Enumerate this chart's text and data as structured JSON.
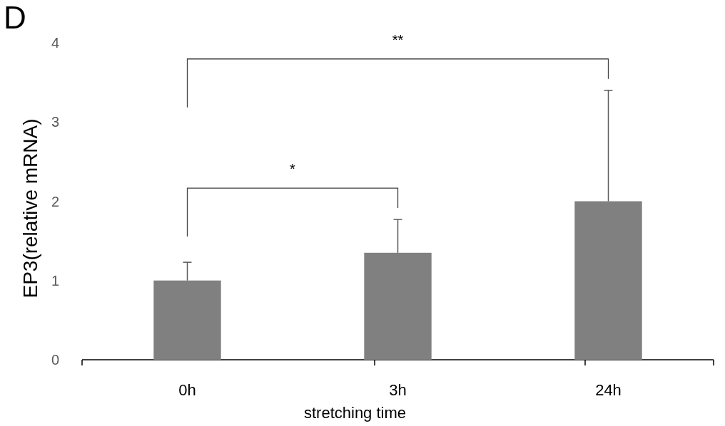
{
  "chart_data": {
    "type": "bar",
    "title": "D",
    "xlabel": "stretching time",
    "ylabel": "EP3(relative mRNA)",
    "categories": [
      "0h",
      "3h",
      "24h"
    ],
    "values": [
      1.0,
      1.35,
      2.0
    ],
    "errors": [
      [
        1.0,
        1.23
      ],
      [
        1.35,
        1.77
      ],
      [
        2.0,
        3.4
      ]
    ],
    "color": "#808080",
    "ylim": [
      0,
      4
    ],
    "yticks": [
      0,
      1,
      2,
      3,
      4
    ],
    "annotations": [
      "*",
      "**"
    ]
  }
}
